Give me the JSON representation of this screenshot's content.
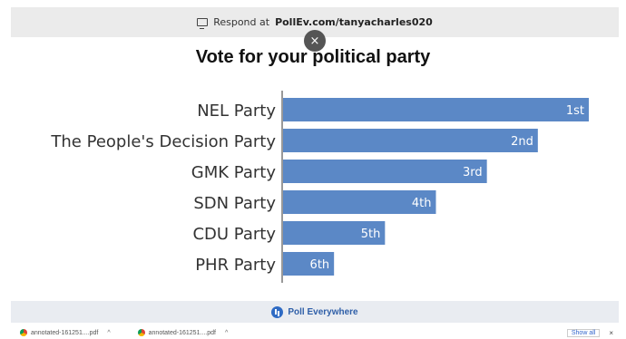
{
  "topbar": {
    "prefix": "Respond at",
    "url": "PollEv.com/tanyacharles020",
    "icon": "monitor-icon"
  },
  "overlay": {
    "close_label": "×"
  },
  "poll": {
    "title": "Vote for your political party"
  },
  "chart_data": {
    "type": "bar",
    "orientation": "horizontal",
    "categories": [
      "NEL Party",
      "The People's Decision Party",
      "GMK Party",
      "SDN Party",
      "CDU Party",
      "PHR Party"
    ],
    "values": [
      6,
      5,
      4,
      3,
      2,
      1
    ],
    "data_labels": [
      "1st",
      "2nd",
      "3rd",
      "4th",
      "5th",
      "6th"
    ],
    "title": "Vote for your political party",
    "xlim": [
      0,
      6
    ],
    "grid": false,
    "bar_color": "#5b88c6"
  },
  "footer": {
    "brand": "Poll Everywhere"
  },
  "downloads": {
    "items": [
      {
        "name": "annotated-161251....pdf"
      },
      {
        "name": "annotated-161251....pdf"
      }
    ],
    "show_all_label": "Show all",
    "close_label": "×"
  }
}
